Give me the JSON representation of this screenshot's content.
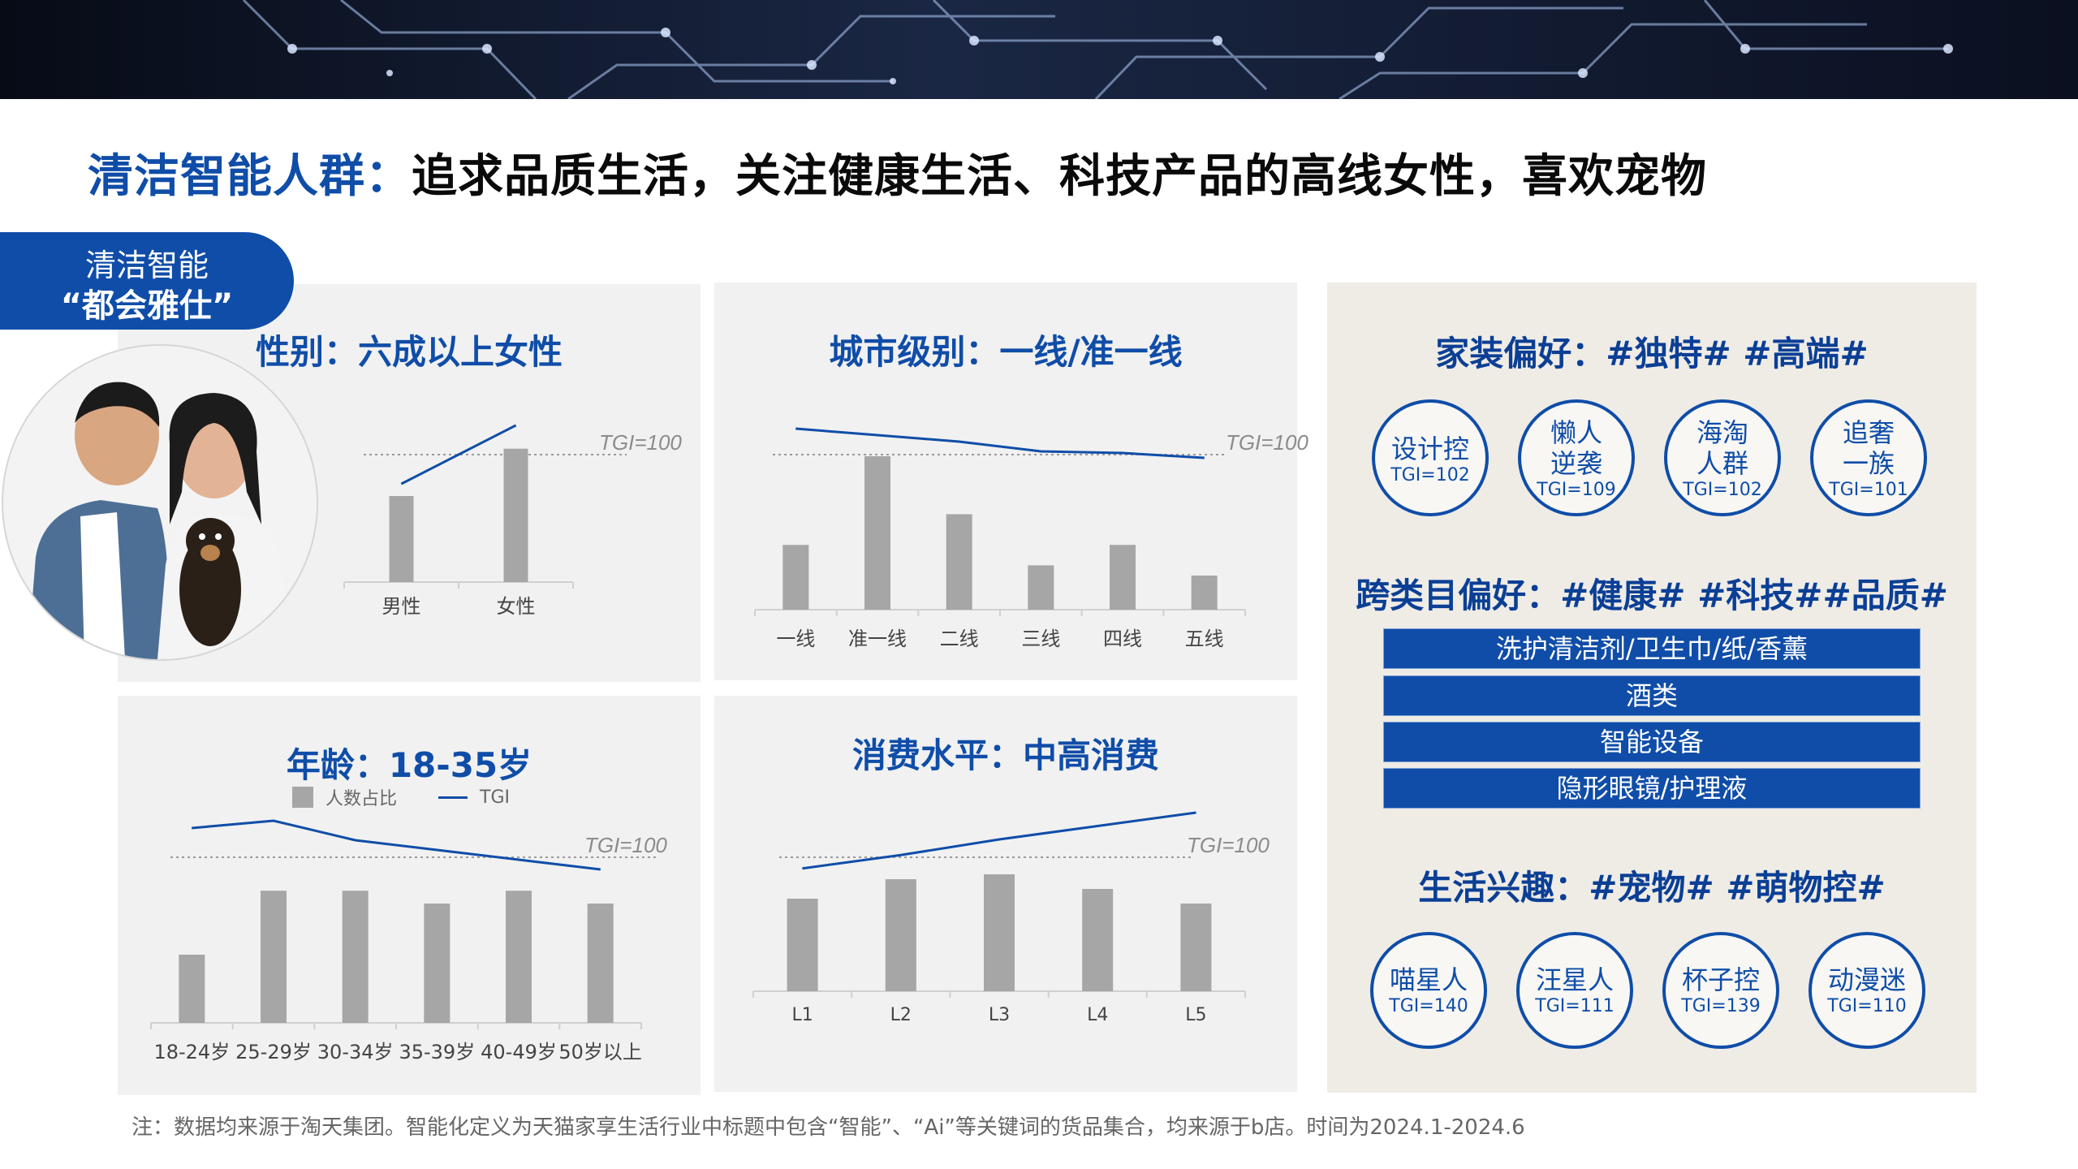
{
  "headline": {
    "accent": "清洁智能人群：",
    "rest": "追求品质生活，关注健康生活、科技产品的高线女性，喜欢宠物"
  },
  "tag": {
    "line1": "清洁智能",
    "line2": "“都会雅仕”"
  },
  "colors": {
    "brand": "#0f4da8",
    "bar_gray": "#a6a6a6",
    "panel_gray": "#f1f1f1",
    "panel_beige": "#efece6"
  },
  "gender": {
    "title": "性别：六成以上女性",
    "chart_data": {
      "type": "bar",
      "categories": [
        "男性",
        "女性"
      ],
      "series": [
        {
          "values": [
            0.4,
            0.62
          ]
        }
      ],
      "tgi": [
        82,
        118
      ],
      "reference_line": {
        "label": "TGI=100",
        "value": 100
      }
    }
  },
  "city": {
    "title": "城市级别：一线/准一线",
    "chart_data": {
      "type": "bar",
      "categories": [
        "一线",
        "准一线",
        "二线",
        "三线",
        "四线",
        "五线"
      ],
      "series": [
        {
          "values": [
            0.19,
            0.45,
            0.28,
            0.13,
            0.19,
            0.1
          ]
        }
      ],
      "tgi": [
        116,
        112,
        108,
        102,
        101,
        98
      ],
      "reference_line": {
        "label": "TGI=100",
        "value": 100
      }
    }
  },
  "age": {
    "title": "年龄：18-35岁",
    "legend": {
      "bar": "人数占比",
      "line": "TGI"
    },
    "chart_data": {
      "type": "bar",
      "categories": [
        "18-24岁",
        "25-29岁",
        "30-34岁",
        "35-39岁",
        "40-49岁",
        "50岁以上"
      ],
      "series": [
        {
          "name": "人数占比",
          "values": [
            0.08,
            0.155,
            0.155,
            0.14,
            0.155,
            0.14
          ]
        },
        {
          "name": "TGI",
          "values": [
            112,
            115,
            107,
            103,
            99,
            95
          ]
        }
      ],
      "reference_line": {
        "label": "TGI=100",
        "value": 100
      }
    }
  },
  "spending": {
    "title": "消费水平：中高消费",
    "chart_data": {
      "type": "bar",
      "categories": [
        "L1",
        "L2",
        "L3",
        "L4",
        "L5"
      ],
      "series": [
        {
          "values": [
            0.19,
            0.23,
            0.24,
            0.21,
            0.18
          ]
        }
      ],
      "tgi": [
        95,
        101,
        108,
        114,
        120
      ],
      "reference_line": {
        "label": "TGI=100",
        "value": 100
      }
    }
  },
  "decor": {
    "title": "家装偏好：#独特# #高端#",
    "items": [
      {
        "label": "设计控",
        "tgi": "TGI=102"
      },
      {
        "label": "懒人\n逆袭",
        "tgi": "TGI=109"
      },
      {
        "label": "海淘\n人群",
        "tgi": "TGI=102"
      },
      {
        "label": "追奢\n一族",
        "tgi": "TGI=101"
      }
    ]
  },
  "cross": {
    "title": "跨类目偏好：#健康# #科技##品质#",
    "bars": [
      "洗护清洁剂/卫生巾/纸/香薰",
      "酒类",
      "智能设备",
      "隐形眼镜/护理液"
    ]
  },
  "life": {
    "title": "生活兴趣：#宠物# #萌物控#",
    "items": [
      {
        "label": "喵星人",
        "tgi": "TGI=140"
      },
      {
        "label": "汪星人",
        "tgi": "TGI=111"
      },
      {
        "label": "杯子控",
        "tgi": "TGI=139"
      },
      {
        "label": "动漫迷",
        "tgi": "TGI=110"
      }
    ]
  },
  "footnote": "注：数据均来源于淘天集团。智能化定义为天猫家享生活行业中标题中包含“智能”、“Ai”等关键词的货品集合，均来源于b店。时间为2024.1-2024.6"
}
